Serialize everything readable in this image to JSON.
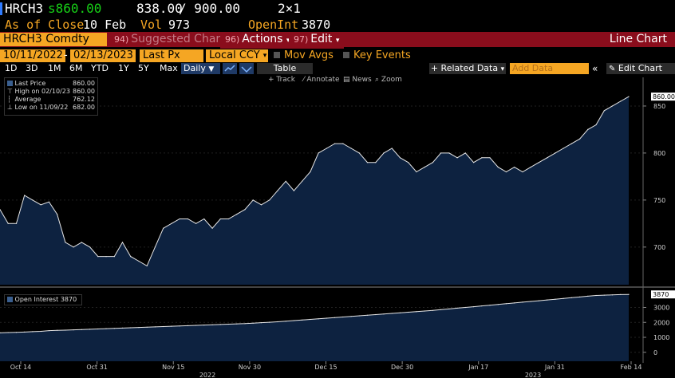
{
  "header": {
    "ticker": "HRCH3",
    "last_price": "s860.00",
    "bid": "838.00",
    "ask": "/ 900.00",
    "size": "2×1",
    "as_of_label": "As of Close",
    "as_of_date": "10 Feb",
    "vol_label": "Vol",
    "vol_value": "973",
    "openint_label": "OpenInt",
    "openint_value": "3870"
  },
  "toolbar1": {
    "security": "HRCH3 Comdty",
    "suggested_num": "94)",
    "suggested_label": "Suggested Charts",
    "actions_num": "96)",
    "actions_label": "Actions",
    "edit_num": "97)",
    "edit_label": "Edit",
    "chart_type": "Line Chart"
  },
  "toolbar2": {
    "start_date": "10/11/2022",
    "end_date": "02/13/2023",
    "field": "Last Px",
    "currency": "Local CCY",
    "mov_avgs": "Mov Avgs",
    "key_events": "Key Events"
  },
  "toolbar3": {
    "periods": [
      "1D",
      "3D",
      "1M",
      "6M",
      "YTD",
      "1Y",
      "5Y",
      "Max"
    ],
    "frequency": "Daily",
    "table_label": "Table",
    "related_data": "+ Related Data",
    "add_data_placeholder": "Add Data",
    "edit_chart": "Edit Chart"
  },
  "chart_tools": [
    "Track",
    "Annotate",
    "News",
    "Zoom"
  ],
  "legend": {
    "rows": [
      {
        "label": "Last Price",
        "value": "860.00"
      },
      {
        "label": "High on 02/10/23",
        "value": "860.00"
      },
      {
        "label": "Average",
        "value": "762.12"
      },
      {
        "label": "Low on 11/09/22",
        "value": "682.00"
      }
    ]
  },
  "lower_legend": "Open Interest 3870",
  "colors": {
    "accent_orange": "#f5a623",
    "red_bar": "#8a0d1c",
    "area_fill": "#0d2240",
    "line": "#e6e6e6",
    "price_green": "#17d117"
  },
  "chart_data": [
    {
      "type": "area",
      "title": "",
      "y_ticks": [
        700,
        750,
        800,
        850
      ],
      "ylim": [
        660,
        872
      ],
      "last_label": "860.00",
      "x_labels": [
        "Oct 14",
        "Oct 31",
        "Nov 15",
        "Nov 30",
        "Dec 15",
        "Dec 30",
        "Jan 17",
        "Jan 31",
        "Feb 14"
      ],
      "year_labels": [
        "2022",
        "2023"
      ],
      "series": [
        {
          "values": [
            740,
            725,
            725,
            755,
            750,
            745,
            748,
            735,
            705,
            700,
            705,
            700,
            690,
            690,
            690,
            705,
            690,
            685,
            680,
            700,
            720,
            725,
            730,
            730,
            725,
            730,
            720,
            730,
            730,
            735,
            740,
            750,
            745,
            750,
            760,
            770,
            760,
            770,
            780,
            800,
            805,
            810,
            810,
            805,
            800,
            790,
            790,
            800,
            805,
            795,
            790,
            780,
            785,
            790,
            800,
            800,
            795,
            800,
            790,
            795,
            795,
            785,
            780,
            785,
            780,
            785,
            790,
            795,
            800,
            805,
            810,
            815,
            825,
            830,
            845,
            850,
            855,
            860
          ]
        }
      ]
    },
    {
      "type": "area",
      "title": "",
      "y_ticks": [
        0,
        1000,
        2000,
        3000
      ],
      "ylim": [
        -600,
        4200
      ],
      "last_label": "3870",
      "series": [
        {
          "name": "Open Interest",
          "values": [
            1300,
            1320,
            1330,
            1350,
            1380,
            1400,
            1450,
            1470,
            1480,
            1500,
            1520,
            1540,
            1560,
            1580,
            1600,
            1620,
            1640,
            1660,
            1680,
            1700,
            1720,
            1740,
            1760,
            1780,
            1800,
            1820,
            1840,
            1860,
            1880,
            1900,
            1920,
            1950,
            1980,
            2010,
            2040,
            2080,
            2120,
            2160,
            2200,
            2240,
            2280,
            2320,
            2360,
            2400,
            2440,
            2480,
            2520,
            2560,
            2600,
            2640,
            2680,
            2720,
            2760,
            2800,
            2850,
            2900,
            2950,
            3000,
            3050,
            3100,
            3150,
            3200,
            3250,
            3300,
            3350,
            3400,
            3450,
            3500,
            3550,
            3600,
            3650,
            3700,
            3750,
            3800,
            3820,
            3840,
            3860,
            3870
          ]
        }
      ]
    }
  ]
}
